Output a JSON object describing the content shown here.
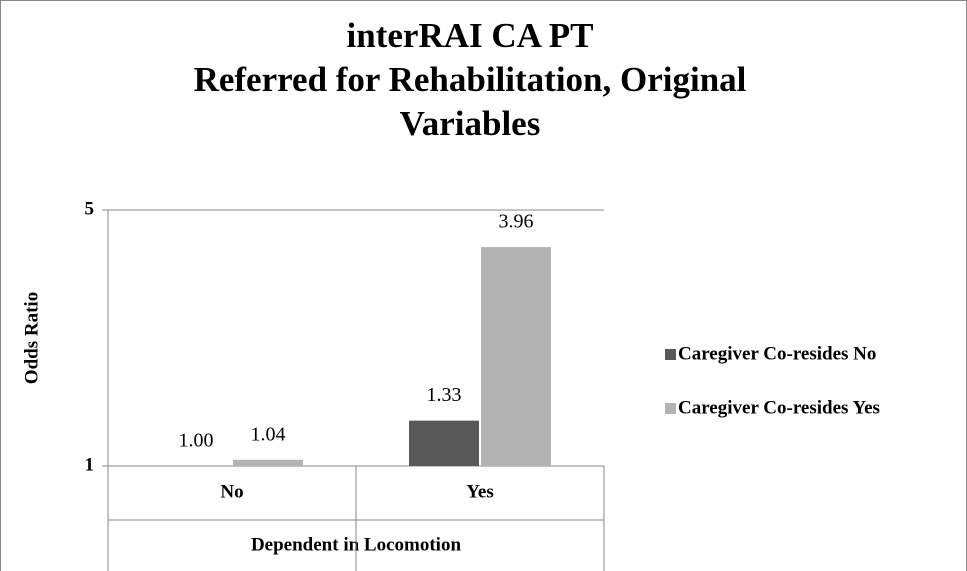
{
  "chart_data": {
    "type": "bar",
    "title": "interRAI CA PT",
    "subtitle": "Referred for Rehabilitation, Original Variables",
    "x_label": "Dependent in Locomotion",
    "y_label": "Odds Ratio",
    "categories": [
      "No",
      "Yes"
    ],
    "series": [
      {
        "name": "Caregiver Co-resides No",
        "color": "#595959",
        "values": [
          1.0,
          1.33
        ],
        "value_labels": [
          "1.00",
          "1.33"
        ]
      },
      {
        "name": "Caregiver Co-resides Yes",
        "color": "#b3b3b3",
        "values": [
          1.04,
          3.96
        ],
        "value_labels": [
          "1.04",
          "3.96"
        ]
      }
    ],
    "ylim": [
      1,
      5
    ],
    "yticks": [
      1,
      5
    ],
    "log_scale": true,
    "grid": true,
    "legend": "right"
  }
}
